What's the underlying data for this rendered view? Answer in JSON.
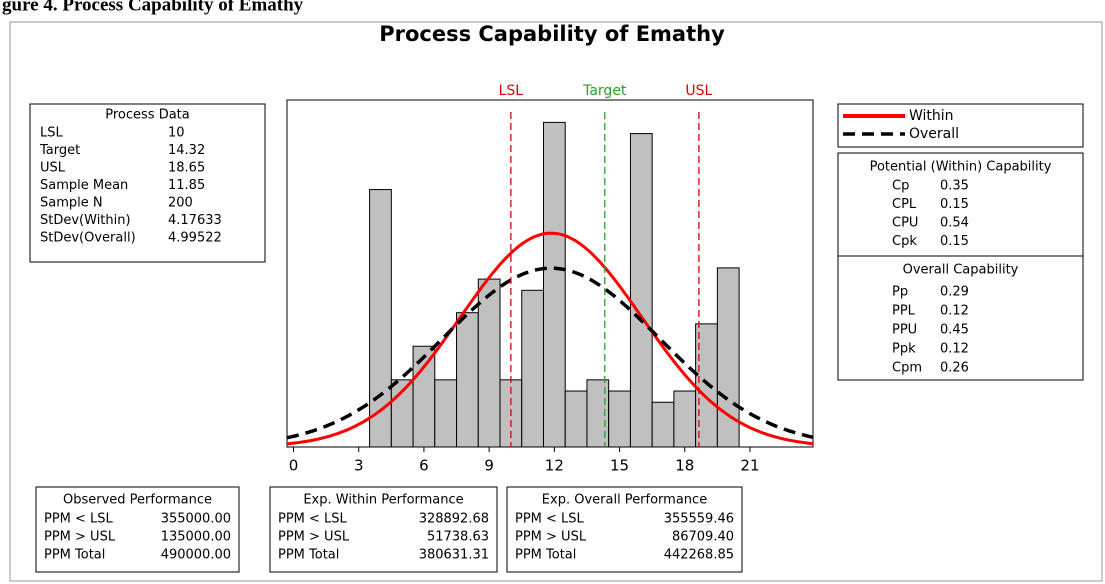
{
  "heading": "gure 4. Process Capability of Emathy",
  "chart_data": {
    "type": "histogram",
    "title": "Process Capability of Emathy",
    "bins": [
      3.5,
      4.5,
      5.5,
      6.5,
      7.5,
      8.5,
      9.5,
      10.5,
      11.5,
      12.5,
      13.5,
      14.5,
      15.5,
      16.5,
      17.5,
      18.5,
      19.5,
      20.5
    ],
    "counts": [
      23,
      6,
      9,
      6,
      12,
      15,
      6,
      14,
      29,
      5,
      6,
      5,
      28,
      4,
      5,
      11,
      16
    ],
    "color": "#c0c0c0",
    "xlim": [
      -0.3,
      23.9
    ],
    "ylim": [
      0,
      31
    ],
    "xticks": [
      0,
      3,
      6,
      9,
      12,
      15,
      18,
      21
    ],
    "spec_lines": [
      {
        "label": "LSL",
        "value": 10,
        "color": "#e00000"
      },
      {
        "label": "Target",
        "value": 14.32,
        "color": "#2aa02a"
      },
      {
        "label": "USL",
        "value": 18.65,
        "color": "#e00000"
      }
    ],
    "series": [
      {
        "name": "Within",
        "color": "#ff0000",
        "style": "solid"
      },
      {
        "name": "Overall",
        "color": "#000000",
        "style": "dashed"
      }
    ]
  },
  "process_data": {
    "title": "Process Data",
    "rows": [
      [
        "LSL",
        10
      ],
      [
        "Target",
        14.32
      ],
      [
        "USL",
        18.65
      ],
      [
        "Sample Mean",
        11.85
      ],
      [
        "Sample N",
        200
      ],
      [
        "StDev(Within)",
        4.17633
      ],
      [
        "StDev(Overall)",
        4.99522
      ]
    ]
  },
  "potential_capability": {
    "title": "Potential (Within) Capability",
    "rows": [
      [
        "Cp",
        0.35
      ],
      [
        "CPL",
        0.15
      ],
      [
        "CPU",
        0.54
      ],
      [
        "Cpk",
        0.15
      ]
    ]
  },
  "overall_capability": {
    "title": "Overall Capability",
    "rows": [
      [
        "Pp",
        0.29
      ],
      [
        "PPL",
        0.12
      ],
      [
        "PPU",
        0.45
      ],
      [
        "Ppk",
        0.12
      ],
      [
        "Cpm",
        0.26
      ]
    ]
  },
  "observed_performance": {
    "title": "Observed Performance",
    "rows": [
      [
        "PPM < LSL",
        "355000.00"
      ],
      [
        "PPM > USL",
        "135000.00"
      ],
      [
        "PPM Total",
        "490000.00"
      ]
    ]
  },
  "exp_within_performance": {
    "title": "Exp. Within Performance",
    "rows": [
      [
        "PPM < LSL",
        "328892.68"
      ],
      [
        "PPM > USL",
        "51738.63"
      ],
      [
        "PPM Total",
        "380631.31"
      ]
    ]
  },
  "exp_overall_performance": {
    "title": "Exp. Overall Performance",
    "rows": [
      [
        "PPM < LSL",
        "355559.46"
      ],
      [
        "PPM > USL",
        "86709.40"
      ],
      [
        "PPM Total",
        "442268.85"
      ]
    ]
  }
}
